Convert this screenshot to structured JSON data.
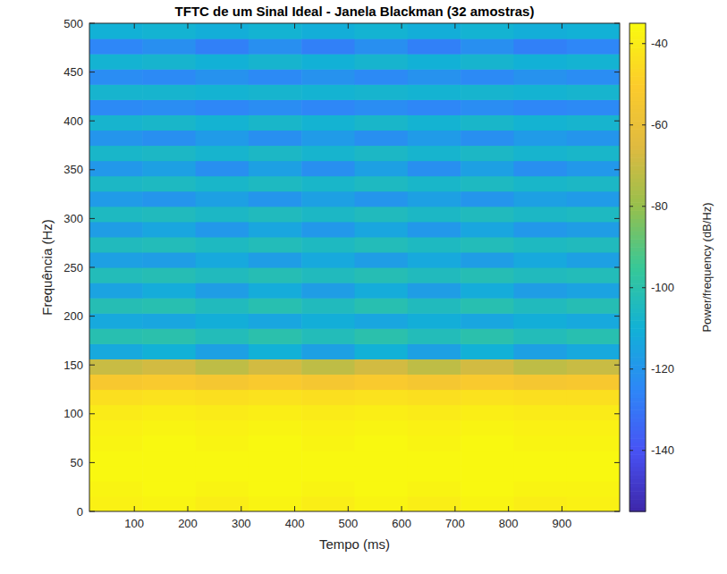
{
  "chart_data": {
    "type": "heatmap",
    "title": "TFTC de um Sinal Ideal - Janela Blackman (32 amostras)",
    "x_label": "Tempo (ms)",
    "y_label": "Frequência (Hz)",
    "xlim": [
      16,
      1008
    ],
    "ylim": [
      0,
      500
    ],
    "xticks": [
      100,
      200,
      300,
      400,
      500,
      600,
      700,
      800,
      900
    ],
    "yticks": [
      0,
      50,
      100,
      150,
      200,
      250,
      300,
      350,
      400,
      450,
      500
    ],
    "x": [
      65.6,
      164.8,
      264,
      363.2,
      462.4,
      561.6,
      660.8,
      760,
      859.2,
      958.4
    ],
    "y": [
      7.8125,
      23.4375,
      39.0625,
      54.6875,
      70.3125,
      85.9375,
      101.5625,
      117.1875,
      132.8125,
      148.4375,
      164.0625,
      179.6875,
      195.3125,
      210.9375,
      226.5625,
      242.1875,
      257.8125,
      273.4375,
      289.0625,
      304.6875,
      320.3125,
      335.9375,
      351.5625,
      367.1875,
      382.8125,
      398.4375,
      414.0625,
      429.6875,
      445.3125,
      460.9375,
      476.5625,
      492.1875
    ],
    "cells": [
      [
        -38,
        -37,
        -39,
        -37,
        -39,
        -37,
        -39,
        -37,
        -39,
        -38
      ],
      [
        -37,
        -36,
        -37,
        -36,
        -37,
        -36,
        -37,
        -36,
        -37,
        -37
      ],
      [
        -36,
        -36,
        -36,
        -36,
        -36,
        -36,
        -36,
        -36,
        -36,
        -36
      ],
      [
        -36,
        -36,
        -36,
        -36,
        -36,
        -36,
        -36,
        -36,
        -36,
        -36
      ],
      [
        -37,
        -36,
        -37,
        -36,
        -37,
        -36,
        -37,
        -36,
        -37,
        -37
      ],
      [
        -38,
        -37,
        -38,
        -37,
        -38,
        -37,
        -38,
        -37,
        -38,
        -38
      ],
      [
        -40,
        -39,
        -40,
        -39,
        -40,
        -39,
        -40,
        -39,
        -40,
        -40
      ],
      [
        -44,
        -43,
        -44,
        -43,
        -44,
        -43,
        -44,
        -43,
        -44,
        -44
      ],
      [
        -53,
        -52,
        -54,
        -52,
        -54,
        -52,
        -54,
        -52,
        -54,
        -53
      ],
      [
        -70,
        -68,
        -72,
        -68,
        -72,
        -68,
        -72,
        -68,
        -72,
        -70
      ],
      [
        -113,
        -110,
        -116,
        -110,
        -116,
        -110,
        -116,
        -110,
        -116,
        -113
      ],
      [
        -101,
        -100,
        -103,
        -100,
        -103,
        -100,
        -103,
        -100,
        -103,
        -101
      ],
      [
        -113,
        -114,
        -111,
        -114,
        -111,
        -114,
        -111,
        -114,
        -111,
        -113
      ],
      [
        -102,
        -101,
        -104,
        -101,
        -104,
        -101,
        -104,
        -101,
        -104,
        -102
      ],
      [
        -115,
        -112,
        -117,
        -112,
        -117,
        -112,
        -117,
        -112,
        -117,
        -115
      ],
      [
        -103,
        -102,
        -104,
        -102,
        -104,
        -102,
        -104,
        -102,
        -104,
        -103
      ],
      [
        -116,
        -117,
        -113,
        -117,
        -113,
        -117,
        -113,
        -117,
        -113,
        -116
      ],
      [
        -104,
        -103,
        -105,
        -103,
        -105,
        -103,
        -105,
        -103,
        -105,
        -104
      ],
      [
        -117,
        -114,
        -119,
        -114,
        -119,
        -114,
        -119,
        -114,
        -119,
        -117
      ],
      [
        -105,
        -104,
        -106,
        -104,
        -106,
        -104,
        -106,
        -104,
        -106,
        -105
      ],
      [
        -118,
        -120,
        -116,
        -120,
        -116,
        -120,
        -116,
        -120,
        -116,
        -118
      ],
      [
        -106,
        -105,
        -107,
        -105,
        -107,
        -105,
        -107,
        -105,
        -107,
        -106
      ],
      [
        -119,
        -116,
        -122,
        -116,
        -122,
        -116,
        -122,
        -116,
        -122,
        -119
      ],
      [
        -107,
        -106,
        -108,
        -106,
        -108,
        -106,
        -108,
        -106,
        -108,
        -107
      ],
      [
        -120,
        -122,
        -118,
        -122,
        -118,
        -122,
        -118,
        -122,
        -118,
        -120
      ],
      [
        -108,
        -107,
        -109,
        -107,
        -109,
        -107,
        -109,
        -107,
        -109,
        -108
      ],
      [
        -124,
        -123,
        -125,
        -123,
        -125,
        -123,
        -125,
        -123,
        -125,
        -124
      ],
      [
        -108,
        -108,
        -109,
        -108,
        -109,
        -108,
        -109,
        -108,
        -109,
        -108
      ],
      [
        -123,
        -124,
        -121,
        -124,
        -121,
        -124,
        -121,
        -124,
        -121,
        -123
      ],
      [
        -109,
        -108,
        -110,
        -108,
        -110,
        -108,
        -110,
        -108,
        -110,
        -109
      ],
      [
        -125,
        -122,
        -127,
        -122,
        -127,
        -122,
        -127,
        -122,
        -127,
        -125
      ],
      [
        -110,
        -109,
        -111,
        -109,
        -111,
        -109,
        -111,
        -109,
        -111,
        -110
      ]
    ],
    "colorbar": {
      "label": "Power/frequency (dB/Hz)",
      "lim": [
        -155,
        -35
      ],
      "ticks": [
        -140,
        -120,
        -100,
        -80,
        -60,
        -40
      ]
    }
  }
}
